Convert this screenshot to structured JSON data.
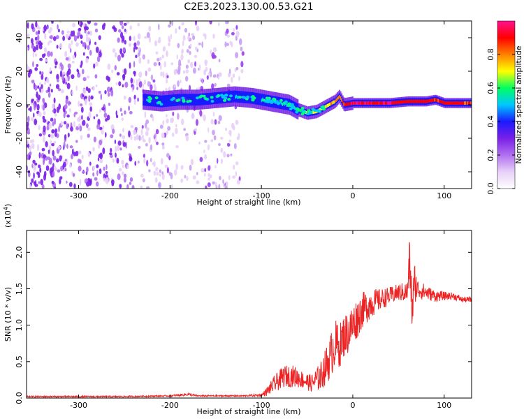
{
  "title": "C2E3.2023.130.00.53.G21",
  "colorbar": {
    "label": "Normalized spectral amplitude",
    "ticks": [
      {
        "v": 0.0,
        "t": "0.0"
      },
      {
        "v": 0.2,
        "t": "0.2"
      },
      {
        "v": 0.4,
        "t": "0.4"
      },
      {
        "v": 0.6,
        "t": "0.6"
      },
      {
        "v": 0.8,
        "t": "0.8"
      }
    ],
    "range": [
      0,
      1
    ],
    "colors": [
      "#ffffff",
      "#e8d0f8",
      "#b070f0",
      "#7a20e8",
      "#1a1aff",
      "#00c8ff",
      "#00ff60",
      "#ffff00",
      "#ff8000",
      "#ff0000",
      "#ff1090"
    ]
  },
  "chart_data": [
    {
      "type": "heatmap",
      "title": "C2E3.2023.130.00.53.G21",
      "xlabel": "Height of straight line (km)",
      "ylabel": "Frequency (Hz)",
      "xlim": [
        -357,
        130
      ],
      "ylim": [
        -50,
        50
      ],
      "xticks": [
        {
          "v": -300,
          "t": "-300"
        },
        {
          "v": -200,
          "t": "-200"
        },
        {
          "v": -100,
          "t": "-100"
        },
        {
          "v": 0,
          "t": "0"
        },
        {
          "v": 100,
          "t": "100"
        }
      ],
      "yticks": [
        {
          "v": -40,
          "t": "-40"
        },
        {
          "v": -20,
          "t": "-20"
        },
        {
          "v": 0,
          "t": "0"
        },
        {
          "v": 20,
          "t": "20"
        },
        {
          "v": 40,
          "t": "40"
        }
      ],
      "noise_extent_x": [
        -357,
        -120
      ],
      "ridge": {
        "x": [
          -230,
          -210,
          -190,
          -170,
          -150,
          -130,
          -110,
          -90,
          -70,
          -60,
          -50,
          -40,
          -30,
          -20,
          -15,
          -10,
          0,
          20,
          40,
          60,
          80,
          90,
          100,
          110,
          130
        ],
        "y": [
          3,
          2,
          3,
          3,
          4,
          5,
          4,
          2,
          0,
          -3,
          -5,
          -4,
          -1,
          2,
          5,
          0,
          1,
          1,
          1,
          2,
          2,
          3,
          1,
          1,
          1
        ],
        "amplitude": [
          0.35,
          0.4,
          0.35,
          0.4,
          0.4,
          0.45,
          0.4,
          0.5,
          0.55,
          0.6,
          0.65,
          0.7,
          0.7,
          0.75,
          0.8,
          0.85,
          0.95,
          0.95,
          0.95,
          0.9,
          0.9,
          0.85,
          0.9,
          0.9,
          0.85
        ]
      }
    },
    {
      "type": "line",
      "xlabel": "Height of straight line (km)",
      "ylabel": "SNR (10 * v/v)",
      "yscale_label": "(x10^4)",
      "xlim": [
        -357,
        130
      ],
      "ylim": [
        0,
        2.3
      ],
      "xticks": [
        {
          "v": -300,
          "t": "-300"
        },
        {
          "v": -200,
          "t": "-200"
        },
        {
          "v": -100,
          "t": "-100"
        },
        {
          "v": 0,
          "t": "0"
        },
        {
          "v": 100,
          "t": "100"
        }
      ],
      "yticks": [
        {
          "v": 0.0,
          "t": "0.0"
        },
        {
          "v": 0.5,
          "t": "0.5"
        },
        {
          "v": 1.0,
          "t": "1.0"
        },
        {
          "v": 1.5,
          "t": "1.5"
        },
        {
          "v": 2.0,
          "t": "2.0"
        }
      ],
      "color": "#ee2222",
      "series": [
        {
          "x": [
            -357,
            -300,
            -250,
            -200,
            -180,
            -170,
            -150,
            -120,
            -100,
            -95,
            -85,
            -75,
            -65,
            -55,
            -45,
            -35,
            -25,
            -20,
            -15,
            -10,
            -5,
            0,
            10,
            20,
            30,
            40,
            50,
            60,
            62,
            65,
            68,
            70,
            80,
            90,
            100,
            110,
            120,
            130
          ],
          "y": [
            0.02,
            0.02,
            0.02,
            0.03,
            0.05,
            0.03,
            0.03,
            0.03,
            0.04,
            0.08,
            0.2,
            0.3,
            0.3,
            0.25,
            0.2,
            0.3,
            0.55,
            0.75,
            0.7,
            0.85,
            0.9,
            1.0,
            1.2,
            1.3,
            1.35,
            1.4,
            1.45,
            1.45,
            1.9,
            1.2,
            1.6,
            1.5,
            1.45,
            1.4,
            1.4,
            1.4,
            1.35,
            1.35
          ],
          "noise": [
            0.01,
            0.01,
            0.01,
            0.01,
            0.02,
            0.01,
            0.01,
            0.01,
            0.02,
            0.05,
            0.12,
            0.15,
            0.15,
            0.12,
            0.12,
            0.2,
            0.3,
            0.35,
            0.3,
            0.3,
            0.3,
            0.3,
            0.25,
            0.2,
            0.15,
            0.12,
            0.12,
            0.15,
            0.3,
            0.35,
            0.3,
            0.15,
            0.1,
            0.08,
            0.06,
            0.05,
            0.04,
            0.04
          ]
        }
      ]
    }
  ]
}
